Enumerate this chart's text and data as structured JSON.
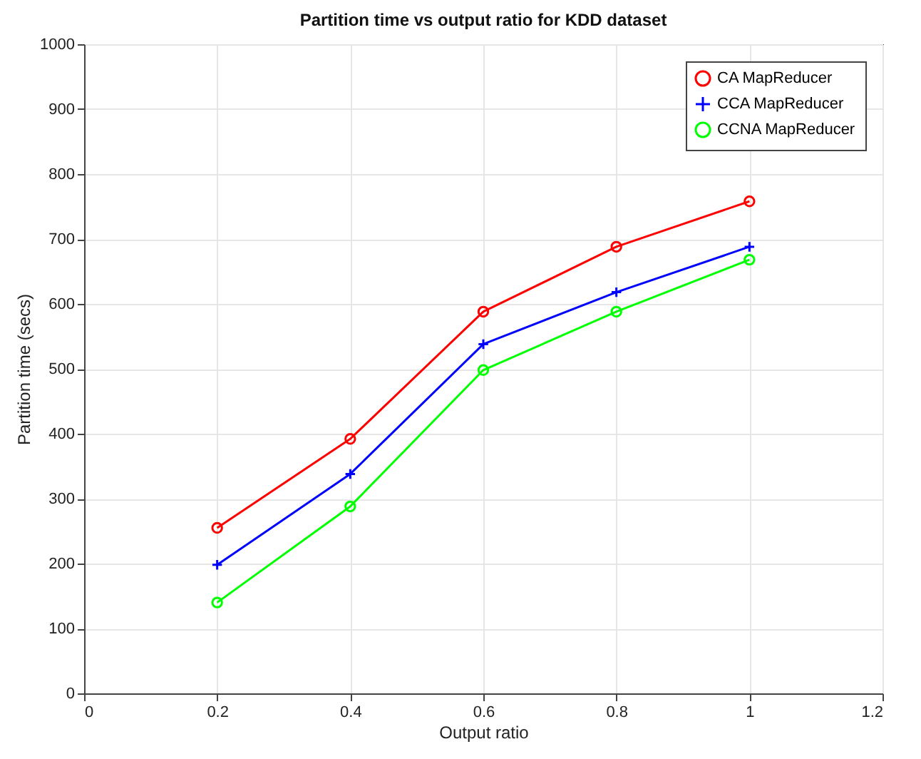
{
  "chart_data": {
    "type": "line",
    "title": "Partition time vs output ratio for KDD dataset",
    "xlabel": "Output ratio",
    "ylabel": "Partition time (secs)",
    "x": [
      0.2,
      0.4,
      0.6,
      0.8,
      1
    ],
    "series": [
      {
        "name": "CA MapReducer",
        "color": "#ff0000",
        "marker": "circle",
        "values": [
          255,
          392,
          588,
          688,
          758
        ]
      },
      {
        "name": "CCA MapReducer",
        "color": "#0000ff",
        "marker": "cross",
        "values": [
          198,
          338,
          538,
          618,
          688
        ]
      },
      {
        "name": "CCNA MapReducer",
        "color": "#00ff00",
        "marker": "circle",
        "values": [
          140,
          288,
          498,
          588,
          668
        ]
      }
    ],
    "xlim": [
      0,
      1.2
    ],
    "xticks": [
      0,
      0.2,
      0.4,
      0.6,
      0.8,
      1,
      1.2
    ],
    "ylim": [
      0,
      1000
    ],
    "yticks": [
      0,
      100,
      200,
      300,
      400,
      500,
      600,
      700,
      800,
      900,
      1000
    ],
    "grid": true,
    "legend": "top right"
  }
}
